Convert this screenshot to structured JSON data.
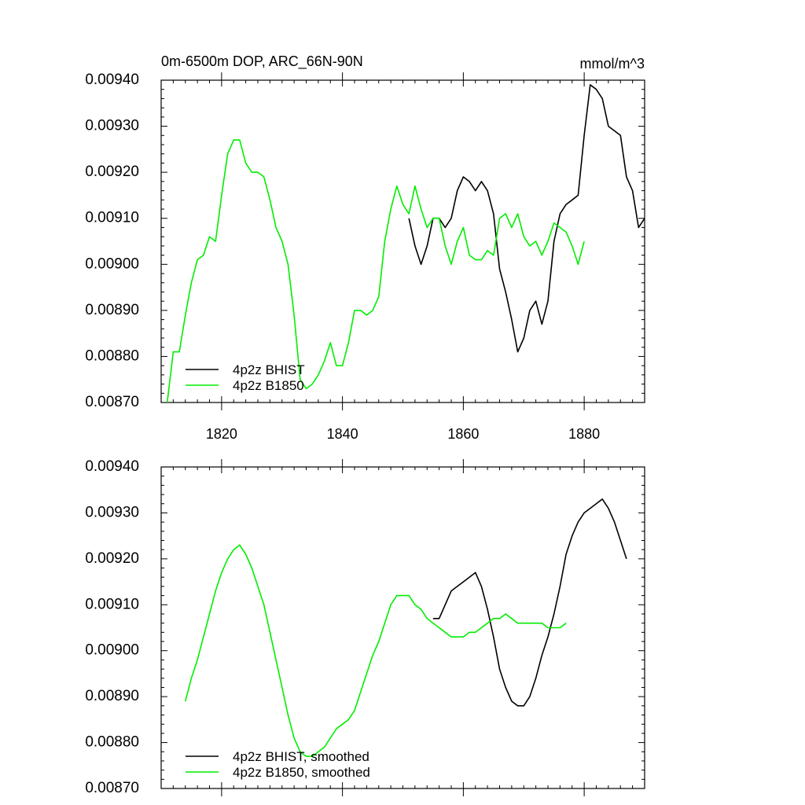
{
  "chart_data": [
    {
      "type": "line",
      "title": "0m-6500m DOP, ARC_66N-90N",
      "units": "mmol/m^3",
      "xlim": [
        1810,
        1890
      ],
      "ylim": [
        0.0087,
        0.0094
      ],
      "x_ticks": [
        1820,
        1840,
        1860,
        1880
      ],
      "x_tick_labels": [
        "1820",
        "1840",
        "1860",
        "1880"
      ],
      "y_ticks": [
        "0.00870",
        "0.00880",
        "0.00890",
        "0.00900",
        "0.00910",
        "0.00920",
        "0.00930",
        "0.00940"
      ],
      "legend_position": "bottom-left",
      "series": [
        {
          "name": "4p2z BHIST",
          "color": "#000000",
          "x": [
            1851,
            1852,
            1853,
            1854,
            1855,
            1856,
            1857,
            1858,
            1859,
            1860,
            1861,
            1862,
            1863,
            1864,
            1865,
            1866,
            1867,
            1868,
            1869,
            1870,
            1871,
            1872,
            1873,
            1874,
            1875,
            1876,
            1877,
            1878,
            1879,
            1880,
            1881,
            1882,
            1883,
            1884,
            1885,
            1886,
            1887,
            1888,
            1889,
            1890
          ],
          "y": [
            0.0091,
            0.00904,
            0.009,
            0.00904,
            0.0091,
            0.0091,
            0.00908,
            0.0091,
            0.00916,
            0.00919,
            0.00918,
            0.00916,
            0.00918,
            0.00916,
            0.00911,
            0.00899,
            0.00894,
            0.00888,
            0.00881,
            0.00884,
            0.0089,
            0.00892,
            0.00887,
            0.00892,
            0.00905,
            0.00911,
            0.00913,
            0.00914,
            0.00915,
            0.00928,
            0.00939,
            0.00938,
            0.00936,
            0.0093,
            0.00929,
            0.00928,
            0.00919,
            0.00916,
            0.00908,
            0.0091
          ]
        },
        {
          "name": "4p2z B1850",
          "color": "#00ee00",
          "x": [
            1811,
            1812,
            1813,
            1814,
            1815,
            1816,
            1817,
            1818,
            1819,
            1820,
            1821,
            1822,
            1823,
            1824,
            1825,
            1826,
            1827,
            1828,
            1829,
            1830,
            1831,
            1832,
            1833,
            1834,
            1835,
            1836,
            1837,
            1838,
            1839,
            1840,
            1841,
            1842,
            1843,
            1844,
            1845,
            1846,
            1847,
            1848,
            1849,
            1850,
            1851,
            1852,
            1853,
            1854,
            1855,
            1856,
            1857,
            1858,
            1859,
            1860,
            1861,
            1862,
            1863,
            1864,
            1865,
            1866,
            1867,
            1868,
            1869,
            1870,
            1871,
            1872,
            1873,
            1874,
            1875,
            1876,
            1877,
            1878,
            1879,
            1880
          ],
          "y": [
            0.0087,
            0.00881,
            0.00881,
            0.00889,
            0.00896,
            0.00901,
            0.00902,
            0.00906,
            0.00905,
            0.00915,
            0.00924,
            0.00927,
            0.00927,
            0.00922,
            0.0092,
            0.0092,
            0.00919,
            0.00914,
            0.00908,
            0.00905,
            0.009,
            0.00889,
            0.00875,
            0.00873,
            0.00874,
            0.00876,
            0.00879,
            0.00883,
            0.00878,
            0.00878,
            0.00883,
            0.0089,
            0.0089,
            0.00889,
            0.0089,
            0.00893,
            0.00905,
            0.00912,
            0.00917,
            0.00913,
            0.00911,
            0.00917,
            0.00912,
            0.00908,
            0.0091,
            0.0091,
            0.00904,
            0.009,
            0.00905,
            0.00908,
            0.00902,
            0.00901,
            0.00901,
            0.00903,
            0.00902,
            0.0091,
            0.00911,
            0.00908,
            0.00911,
            0.00906,
            0.00904,
            0.00905,
            0.00902,
            0.00905,
            0.00909,
            0.00908,
            0.00907,
            0.00904,
            0.009,
            0.00905
          ]
        }
      ]
    },
    {
      "type": "line",
      "title": "",
      "xlim": [
        1810,
        1890
      ],
      "ylim": [
        0.0087,
        0.0094
      ],
      "x_ticks": [
        1820,
        1840,
        1860,
        1880
      ],
      "x_tick_labels": [],
      "y_ticks": [
        "0.00870",
        "0.00880",
        "0.00890",
        "0.00900",
        "0.00910",
        "0.00920",
        "0.00930",
        "0.00940"
      ],
      "legend_position": "bottom-left",
      "series": [
        {
          "name": "4p2z BHIST, smoothed",
          "color": "#000000",
          "x": [
            1855,
            1856,
            1857,
            1858,
            1859,
            1860,
            1861,
            1862,
            1863,
            1864,
            1865,
            1866,
            1867,
            1868,
            1869,
            1870,
            1871,
            1872,
            1873,
            1874,
            1875,
            1876,
            1877,
            1878,
            1879,
            1880,
            1881,
            1882,
            1883,
            1884,
            1885,
            1886,
            1887
          ],
          "y": [
            0.00907,
            0.00907,
            0.0091,
            0.00913,
            0.00914,
            0.00915,
            0.00916,
            0.00917,
            0.00914,
            0.00909,
            0.00903,
            0.00896,
            0.00892,
            0.00889,
            0.00888,
            0.00888,
            0.0089,
            0.00894,
            0.00899,
            0.00903,
            0.00908,
            0.00914,
            0.00921,
            0.00925,
            0.00928,
            0.0093,
            0.00931,
            0.00932,
            0.00933,
            0.00931,
            0.00928,
            0.00924,
            0.0092
          ]
        },
        {
          "name": "4p2z B1850, smoothed",
          "color": "#00ee00",
          "x": [
            1814,
            1815,
            1816,
            1817,
            1818,
            1819,
            1820,
            1821,
            1822,
            1823,
            1824,
            1825,
            1826,
            1827,
            1828,
            1829,
            1830,
            1831,
            1832,
            1833,
            1834,
            1835,
            1836,
            1837,
            1838,
            1839,
            1840,
            1841,
            1842,
            1843,
            1844,
            1845,
            1846,
            1847,
            1848,
            1849,
            1850,
            1851,
            1852,
            1853,
            1854,
            1855,
            1856,
            1857,
            1858,
            1859,
            1860,
            1861,
            1862,
            1863,
            1864,
            1865,
            1866,
            1867,
            1868,
            1869,
            1870,
            1871,
            1872,
            1873,
            1874,
            1875,
            1876,
            1877
          ],
          "y": [
            0.00889,
            0.00894,
            0.00898,
            0.00903,
            0.00908,
            0.00913,
            0.00917,
            0.0092,
            0.00922,
            0.00923,
            0.00921,
            0.00918,
            0.00914,
            0.0091,
            0.00904,
            0.00898,
            0.00892,
            0.00886,
            0.00881,
            0.00878,
            0.00877,
            0.00877,
            0.00878,
            0.00879,
            0.00881,
            0.00883,
            0.00884,
            0.00885,
            0.00887,
            0.00891,
            0.00895,
            0.00899,
            0.00902,
            0.00906,
            0.0091,
            0.00912,
            0.00912,
            0.00912,
            0.0091,
            0.00909,
            0.00907,
            0.00906,
            0.00905,
            0.00904,
            0.00903,
            0.00903,
            0.00903,
            0.00904,
            0.00904,
            0.00905,
            0.00906,
            0.00907,
            0.00907,
            0.00908,
            0.00907,
            0.00906,
            0.00906,
            0.00906,
            0.00906,
            0.00906,
            0.00905,
            0.00905,
            0.00905,
            0.00906
          ]
        }
      ]
    }
  ]
}
